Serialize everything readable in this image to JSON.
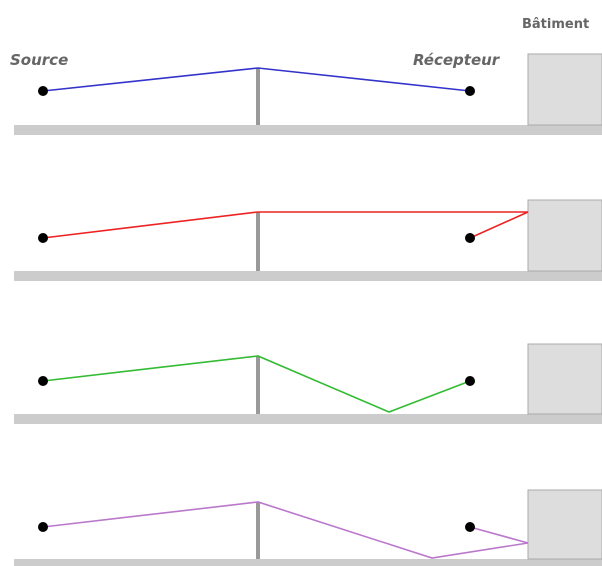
{
  "labels": {
    "source": "Source",
    "receiver": "Récepteur",
    "building": "Bâtiment"
  },
  "colors": {
    "ground": "#cccccc",
    "ground_edge": "#bbbbbb",
    "barrier": "#999999",
    "building_fill": "#dddddd",
    "building_edge": "#aaaaaa",
    "point": "#000000"
  },
  "paths": [
    {
      "id": "direct-diffraction",
      "color": "#3333cc"
    },
    {
      "id": "building-reflection",
      "color": "#ee2222"
    },
    {
      "id": "ground-reflection",
      "color": "#33bb33"
    },
    {
      "id": "ground-building-reflection",
      "color": "#bb77cc"
    }
  ]
}
